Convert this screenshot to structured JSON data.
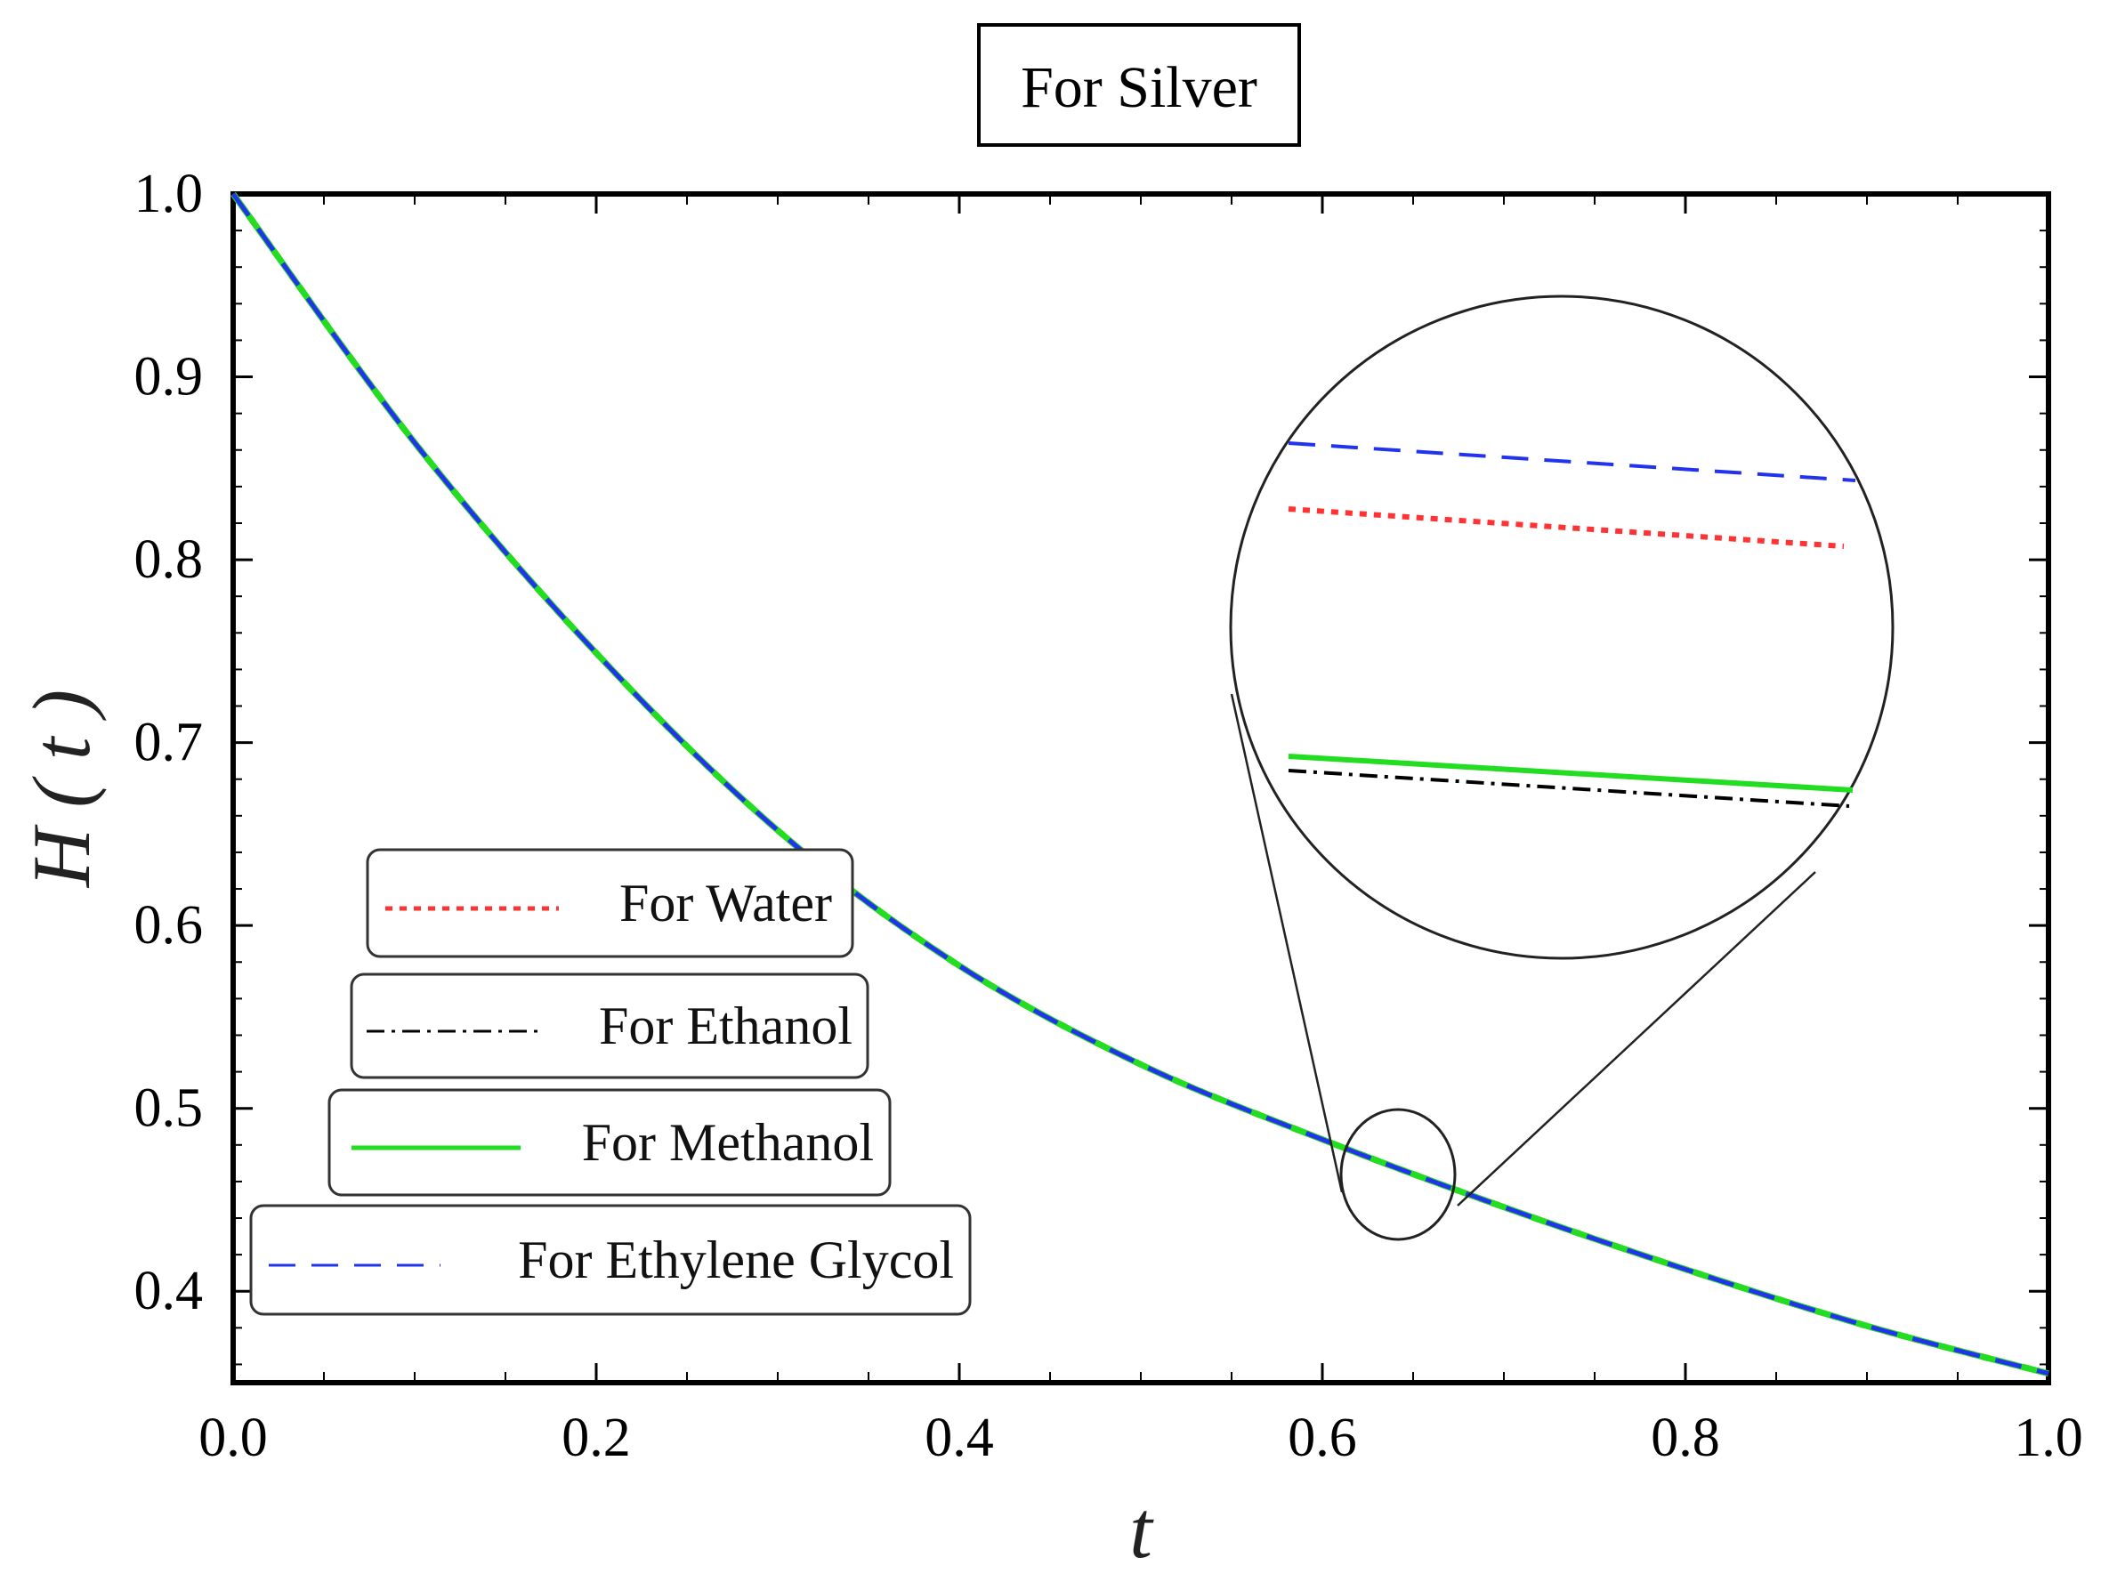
{
  "chart_data": {
    "type": "line",
    "title": "For Silver",
    "xlabel": "t",
    "ylabel": "H ( t )",
    "xlim": [
      0.0,
      1.0
    ],
    "ylim": [
      0.35,
      1.0
    ],
    "x_ticks": [
      "0.0",
      "0.2",
      "0.4",
      "0.6",
      "0.8",
      "1.0"
    ],
    "y_ticks": [
      "0.4",
      "0.5",
      "0.6",
      "0.7",
      "0.8",
      "0.9",
      "1.0"
    ],
    "x": [
      0.0,
      0.1,
      0.2,
      0.3,
      0.4,
      0.5,
      0.6,
      0.7,
      0.8,
      0.9,
      1.0
    ],
    "series": [
      {
        "name": "For Water",
        "color": "#ff3333",
        "style": "dotted",
        "values": [
          1.0,
          0.864,
          0.749,
          0.652,
          0.578,
          0.524,
          0.483,
          0.446,
          0.412,
          0.381,
          0.355
        ]
      },
      {
        "name": "For Ethanol",
        "color": "#000000",
        "style": "dash-dot",
        "values": [
          1.0,
          0.864,
          0.749,
          0.652,
          0.578,
          0.524,
          0.483,
          0.446,
          0.412,
          0.381,
          0.355
        ]
      },
      {
        "name": "For Methanol",
        "color": "#22dd22",
        "style": "solid",
        "values": [
          1.0,
          0.864,
          0.749,
          0.652,
          0.578,
          0.524,
          0.483,
          0.446,
          0.412,
          0.381,
          0.355
        ]
      },
      {
        "name": "For Ethylene Glycol",
        "color": "#2233ee",
        "style": "dashed",
        "values": [
          1.0,
          0.864,
          0.749,
          0.652,
          0.578,
          0.524,
          0.483,
          0.446,
          0.412,
          0.381,
          0.355
        ]
      }
    ],
    "inset": {
      "type": "zoom",
      "center_x": 0.645,
      "center_y": 0.468,
      "description_order_top_to_bottom": [
        "For Ethylene Glycol",
        "For Water",
        "For Methanol",
        "For Ethanol"
      ]
    },
    "legend_position": "bottom-left",
    "grid": false
  }
}
